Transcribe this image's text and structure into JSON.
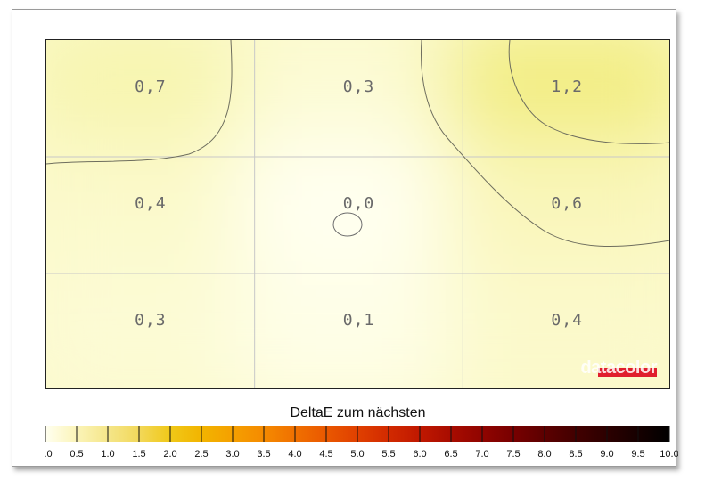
{
  "brand": {
    "name": "datacolor",
    "accent": "#e01e2d"
  },
  "chart_data": [
    {
      "type": "heatmap",
      "rows": 3,
      "cols": 3,
      "values": [
        [
          0.7,
          0.3,
          1.2
        ],
        [
          0.4,
          0.0,
          0.6
        ],
        [
          0.3,
          0.1,
          0.4
        ]
      ],
      "labels": [
        [
          "0,7",
          "0,3",
          "1,2"
        ],
        [
          "0,4",
          "0,0",
          "0,6"
        ],
        [
          "0,3",
          "0,1",
          "0,4"
        ]
      ],
      "grid": true,
      "contours": true
    },
    {
      "type": "colorbar",
      "title": "DeltaE zum nächsten",
      "range": [
        0,
        10
      ],
      "ticks": [
        "0.0",
        "0.5",
        "1.0",
        "1.5",
        "2.0",
        "2.5",
        "3.0",
        "3.5",
        "4.0",
        "4.5",
        "5.0",
        "5.5",
        "6.0",
        "6.5",
        "7.0",
        "7.5",
        "8.0",
        "8.5",
        "9.0",
        "9.5",
        "10.0"
      ],
      "colors": [
        "#fffff0",
        "#fbf4b8",
        "#f5e68a",
        "#f2d85a",
        "#f0c818",
        "#f2b400",
        "#f5a000",
        "#f58a00",
        "#f07000",
        "#ea5800",
        "#e04000",
        "#d22a00",
        "#c01800",
        "#a80c00",
        "#900400",
        "#780000",
        "#5c0000",
        "#420000",
        "#2c0000",
        "#160000",
        "#000000"
      ]
    }
  ]
}
